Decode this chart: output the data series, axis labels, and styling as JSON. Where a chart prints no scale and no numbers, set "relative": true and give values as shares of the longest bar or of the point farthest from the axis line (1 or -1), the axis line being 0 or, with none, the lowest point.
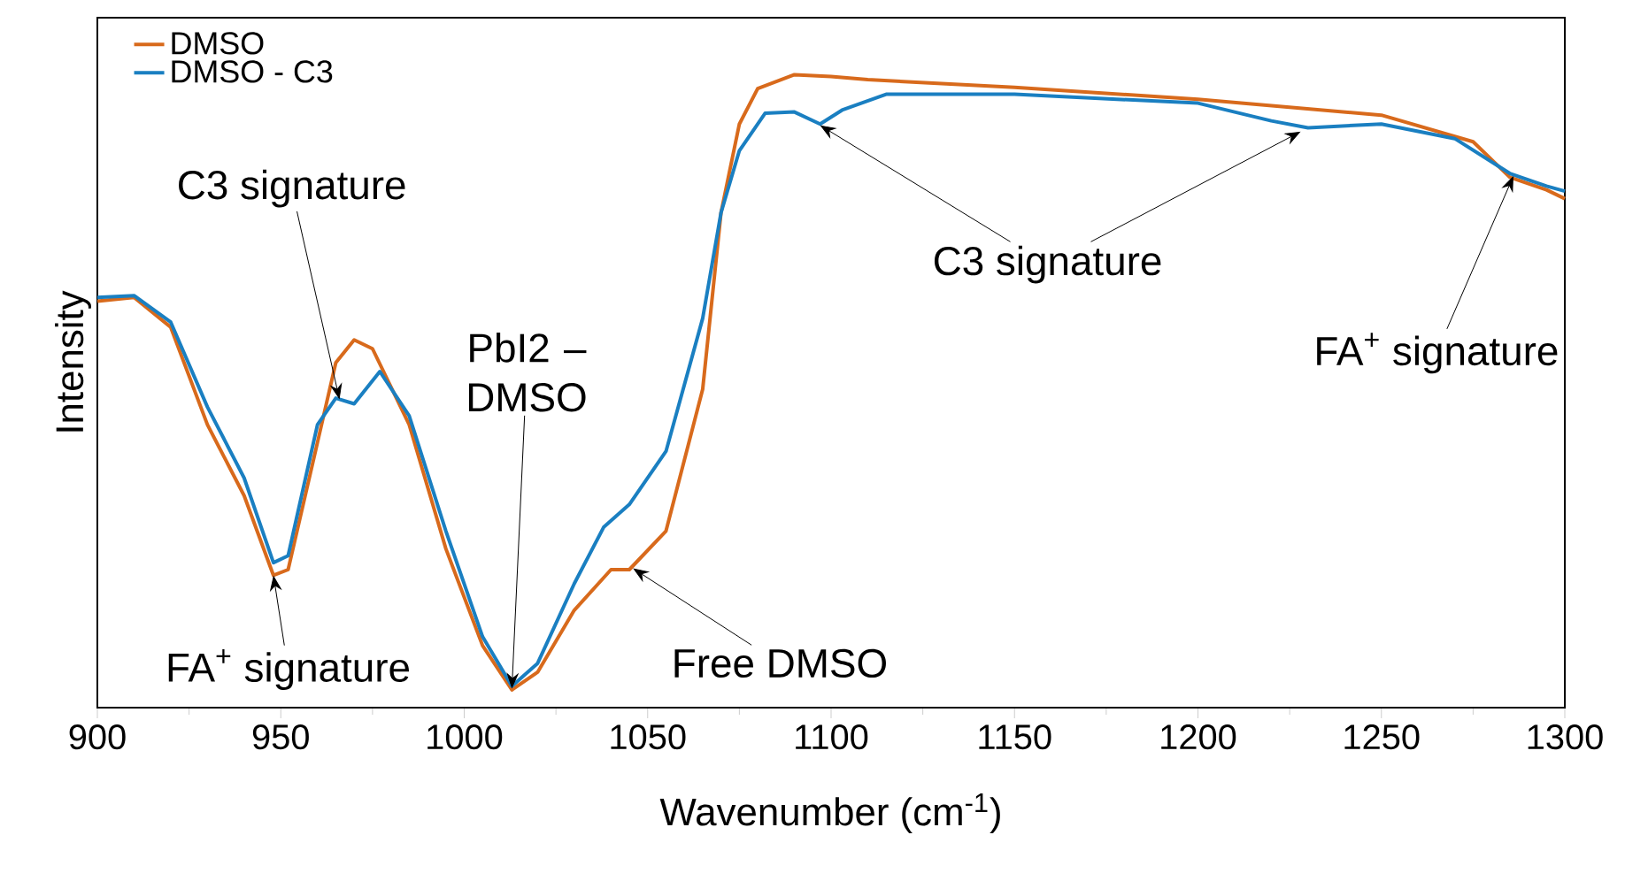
{
  "chart_data": {
    "type": "line",
    "xlabel": "Wavenumber (cm$^{-1}$)",
    "ylabel": "Intensity",
    "relative": true,
    "xlim": [
      900,
      1300
    ],
    "xticks": [
      900,
      950,
      1000,
      1050,
      1100,
      1150,
      1200,
      1250,
      1300
    ],
    "legend": "top left",
    "grid": false,
    "marker": "none",
    "line_style": "solid",
    "series": [
      {
        "name": "DMSO",
        "color": "#d86a1c",
        "x": [
          900,
          910,
          920,
          930,
          940,
          948,
          952,
          960,
          965,
          970,
          975,
          985,
          995,
          1005,
          1013,
          1020,
          1030,
          1040,
          1045,
          1055,
          1065,
          1070,
          1075,
          1080,
          1090,
          1100,
          1110,
          1150,
          1200,
          1250,
          1275,
          1285,
          1295,
          1300
        ],
        "values": [
          0.642,
          0.648,
          0.601,
          0.447,
          0.335,
          0.209,
          0.218,
          0.419,
          0.545,
          0.581,
          0.567,
          0.447,
          0.251,
          0.098,
          0.028,
          0.056,
          0.154,
          0.218,
          0.218,
          0.279,
          0.503,
          0.782,
          0.922,
          0.978,
          1.0,
          0.997,
          0.992,
          0.98,
          0.961,
          0.936,
          0.894,
          0.838,
          0.818,
          0.804
        ]
      },
      {
        "name": "DMSO - C3",
        "color": "#1a7fc1",
        "x": [
          900,
          910,
          920,
          930,
          940,
          948,
          952,
          960,
          965,
          970,
          977,
          985,
          995,
          1005,
          1013,
          1020,
          1030,
          1038,
          1045,
          1055,
          1065,
          1070,
          1075,
          1082,
          1090,
          1097,
          1103,
          1115,
          1150,
          1200,
          1220,
          1230,
          1250,
          1270,
          1285,
          1295,
          1300
        ],
        "values": [
          0.648,
          0.651,
          0.609,
          0.475,
          0.363,
          0.229,
          0.24,
          0.447,
          0.489,
          0.48,
          0.531,
          0.461,
          0.279,
          0.112,
          0.034,
          0.07,
          0.196,
          0.285,
          0.321,
          0.405,
          0.615,
          0.782,
          0.88,
          0.939,
          0.941,
          0.922,
          0.944,
          0.969,
          0.969,
          0.955,
          0.927,
          0.916,
          0.922,
          0.899,
          0.844,
          0.824,
          0.816
        ]
      }
    ],
    "annotations": [
      {
        "text": "C3 signature",
        "x": 966,
        "y": 0.487
      },
      {
        "text": "PbI2 – DMSO",
        "x": 1013,
        "y": 0.03
      },
      {
        "text": "FA$^{+}$ signature",
        "x": 948,
        "y": 0.209
      },
      {
        "text": "Free DMSO",
        "x": 1046,
        "y": 0.22
      },
      {
        "text": "C3 signature",
        "x": 1097,
        "y": 0.92
      },
      {
        "text": "FA$^{+}$ signature",
        "x": 1286,
        "y": 0.84
      }
    ]
  }
}
